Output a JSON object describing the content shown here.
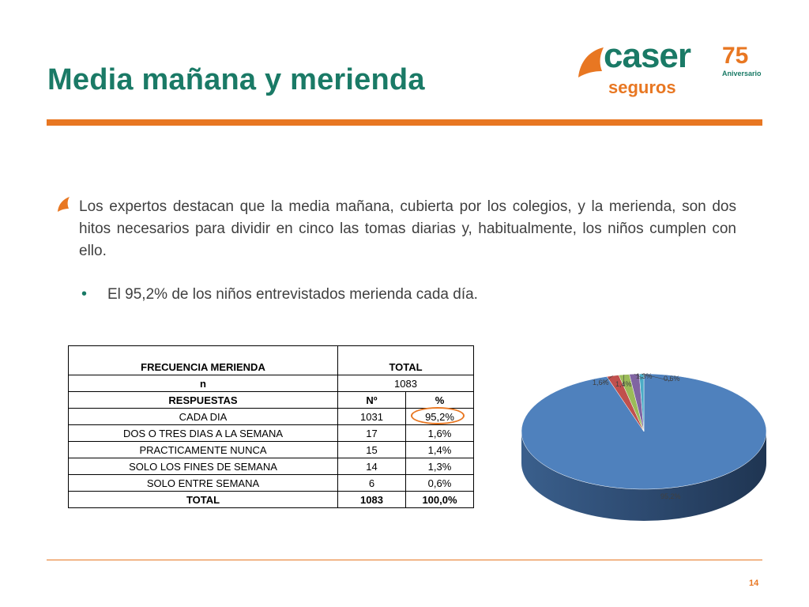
{
  "header": {
    "title": "Media mañana y merienda"
  },
  "logo": {
    "brand": "caser",
    "sub": "seguros",
    "anniversary_number": "75",
    "anniversary_text": "Aniversario"
  },
  "body": {
    "paragraph": "Los expertos destacan que la media mañana, cubierta por los colegios, y la merienda, son dos hitos necesarios para dividir en cinco las tomas diarias y, habitualmente, los niños cumplen con ello.",
    "bullet": "El 95,2% de los niños entrevistados merienda cada día."
  },
  "table": {
    "header_left": "FRECUENCIA MERIENDA",
    "header_right": "TOTAL",
    "n_label": "n",
    "n_value": "1083",
    "col_respuestas": "RESPUESTAS",
    "col_num": "Nº",
    "col_pct": "%",
    "rows": [
      {
        "label": "CADA DIA",
        "num": "1031",
        "pct": "95,2%"
      },
      {
        "label": "DOS O TRES DIAS A LA SEMANA",
        "num": "17",
        "pct": "1,6%"
      },
      {
        "label": "PRACTICAMENTE NUNCA",
        "num": "15",
        "pct": "1,4%"
      },
      {
        "label": "SOLO LOS FINES DE SEMANA",
        "num": "14",
        "pct": "1,3%"
      },
      {
        "label": "SOLO ENTRE SEMANA",
        "num": "6",
        "pct": "0,6%"
      }
    ],
    "total": {
      "label": "TOTAL",
      "num": "1083",
      "pct": "100,0%"
    }
  },
  "chart_data": {
    "type": "pie",
    "slices": [
      {
        "label": "95,2%",
        "value": 95.2,
        "color": "#4f81bd"
      },
      {
        "label": "1,6%",
        "value": 1.6,
        "color": "#c0504d"
      },
      {
        "label": "1,4%",
        "value": 1.4,
        "color": "#9bbb59"
      },
      {
        "label": "1,3%",
        "value": 1.3,
        "color": "#8064a2"
      },
      {
        "label": "0,6%",
        "value": 0.6,
        "color": "#4bacc6"
      }
    ]
  },
  "footer": {
    "page_number": "14"
  },
  "colors": {
    "brand_green": "#1a7a66",
    "accent_orange": "#e87722"
  }
}
